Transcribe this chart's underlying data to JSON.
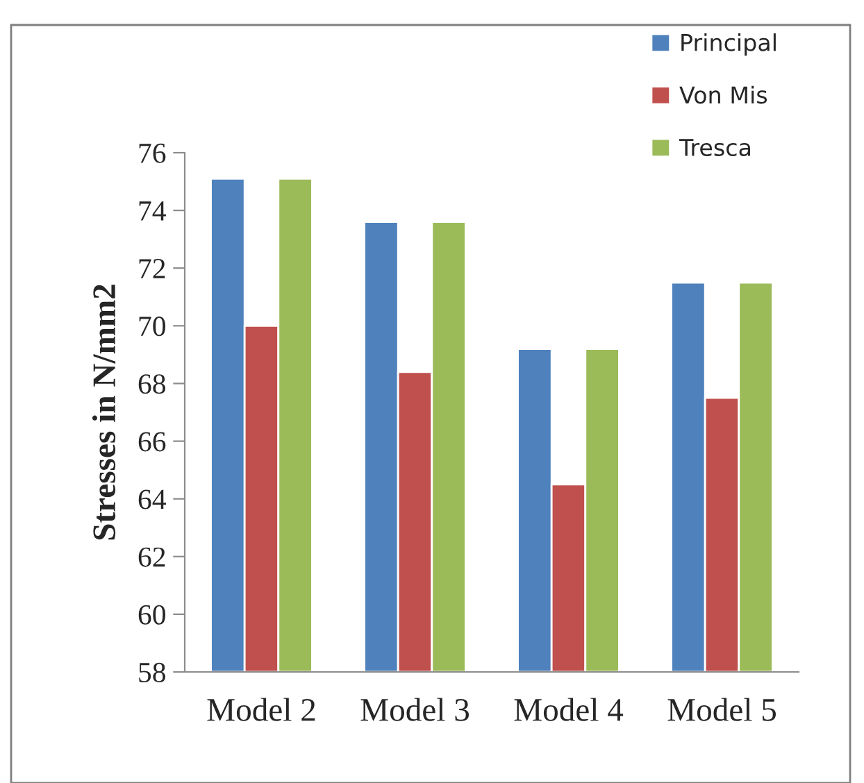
{
  "chart_data": {
    "type": "bar",
    "ylabel": "Stresses in N/mm2",
    "categories": [
      "Model 2",
      "Model 3",
      "Model 4",
      "Model 5"
    ],
    "series": [
      {
        "name": "Principal",
        "color": "#4f81bd",
        "values": [
          75.1,
          73.6,
          69.2,
          71.5
        ]
      },
      {
        "name": "Von Mis",
        "color": "#c0504d",
        "values": [
          70.0,
          68.4,
          64.5,
          67.5
        ]
      },
      {
        "name": "Tresca",
        "color": "#9bbb59",
        "values": [
          75.1,
          73.6,
          69.2,
          71.5
        ]
      }
    ],
    "ylim": [
      58,
      76
    ],
    "yticks": [
      58,
      60,
      62,
      64,
      66,
      68,
      70,
      72,
      74,
      76
    ],
    "grid": false,
    "legend": "top right"
  }
}
